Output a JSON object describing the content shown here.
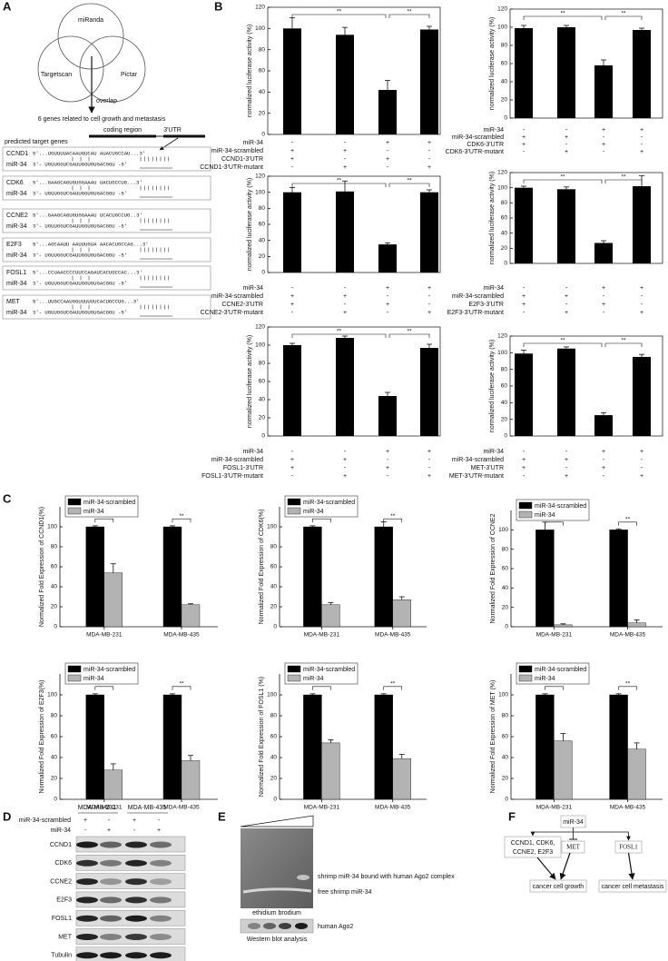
{
  "panel_labels": [
    "A",
    "B",
    "C",
    "D",
    "E",
    "F"
  ],
  "panel_a": {
    "databases": [
      "miRanda",
      "Targetscan",
      "Pictar"
    ],
    "overlap": "overlap",
    "summary": "6 genes related to cell growth and metastasis",
    "coding_region": "coding region",
    "utr": "3'UTR",
    "predicted": "predicted target genes",
    "targets": [
      {
        "gene": "CCND1",
        "mirna_label": "miR-34",
        "mrna": "5'...UGUUUUACAAUGUCAU AUACUGCCAU...3'",
        "mirna": "3'-   UGUUGGUCGAUUGGUGUGACGGU  -5'"
      },
      {
        "gene": "CDK6",
        "mirna_label": "miR-34",
        "mrna": "5'...GAAGCAGUGUGGAAAU UACUGCCUG...3'",
        "mirna": "3'-   UGUUGGUCGAUUGGUGUGACGGU  -5'"
      },
      {
        "gene": "CCNE2",
        "mirna_label": "miR-34",
        "mrna": "5'...GAAGCAGUGUGGAAAU UCACUGCCUG..3'",
        "mirna": "3'-   UGUUGGUCGAUUGGUGUGACGGU  -5'"
      },
      {
        "gene": "E2F3",
        "mirna_label": "miR-34",
        "mrna": "5'...AGCAAUU AAUUUGUA AACACUGCCAG...3'",
        "mirna": "3'-   UGUUGGUCGAUUGGUGUGACGGU  -5'"
      },
      {
        "gene": "FOSL1",
        "mirna_label": "miR-34",
        "mrna": "5'...CCUAACCCCUUCCAGAUCACUGCCAC...3'",
        "mirna": "3'-   UGUUGGUCGAUUGGUGUGACGGU  -5'"
      },
      {
        "gene": "MET",
        "mirna_label": "miR-34",
        "mrna": "5'...UUGCCAAUGGUUUUUUCACUGCCUG...3'",
        "mirna": "3'-   UGUUGGUCGAUUGGUGUGACGGU  -5'"
      }
    ]
  },
  "chart_data": [
    {
      "type": "bar",
      "ylabel": "normalized luciferase activity (%)",
      "values": [
        100,
        94,
        42,
        99
      ],
      "errors": [
        10,
        7,
        9,
        3
      ],
      "color": "#000000",
      "ylim": [
        0,
        120
      ],
      "yticks": [
        0,
        20,
        40,
        60,
        80,
        100,
        120
      ],
      "significance": [
        "**",
        "**"
      ],
      "conditions": [
        {
          "label": "miR-34",
          "signs": [
            "-",
            "-",
            "+",
            "+"
          ]
        },
        {
          "label": "miR-34-scrambled",
          "signs": [
            "+",
            "+",
            "-",
            "-"
          ]
        },
        {
          "label": "CCND1-3'UTR",
          "signs": [
            "+",
            "-",
            "+",
            "-"
          ]
        },
        {
          "label": "CCND1-3'UTR-mutant",
          "signs": [
            "-",
            "+",
            "-",
            "+"
          ]
        }
      ]
    },
    {
      "type": "bar",
      "ylabel": "normalized luciferase activity (%)",
      "values": [
        99,
        100,
        58,
        97
      ],
      "errors": [
        3,
        2,
        6,
        2
      ],
      "color": "#000000",
      "ylim": [
        0,
        120
      ],
      "yticks": [
        0,
        20,
        40,
        60,
        80,
        100,
        120
      ],
      "significance": [
        "**",
        "**"
      ],
      "conditions": [
        {
          "label": "miR-34",
          "signs": [
            "-",
            "-",
            "+",
            "+"
          ]
        },
        {
          "label": "miR-34-scrambled",
          "signs": [
            "+",
            "+",
            "-",
            "-"
          ]
        },
        {
          "label": "CDK6-3'UTR",
          "signs": [
            "+",
            "-",
            "+",
            "-"
          ]
        },
        {
          "label": "CDK6-3'UTR-mutant",
          "signs": [
            "-",
            "+",
            "-",
            "+"
          ]
        }
      ]
    },
    {
      "type": "bar",
      "ylabel": "normalized luciferase activity (%)",
      "values": [
        100,
        101,
        35,
        100
      ],
      "errors": [
        6,
        13,
        2,
        3
      ],
      "color": "#000000",
      "ylim": [
        0,
        120
      ],
      "yticks": [
        0,
        20,
        40,
        60,
        80,
        100,
        120
      ],
      "significance": [
        "**",
        "**"
      ],
      "conditions": [
        {
          "label": "miR-34",
          "signs": [
            "-",
            "-",
            "+",
            "+"
          ]
        },
        {
          "label": "miR-34-scrambled",
          "signs": [
            "+",
            "+",
            "-",
            "-"
          ]
        },
        {
          "label": "CCNE2-3'UTR",
          "signs": [
            "+",
            "-",
            "+",
            "-"
          ]
        },
        {
          "label": "CCNE2-3'UTR-mutant",
          "signs": [
            "-",
            "+",
            "-",
            "+"
          ]
        }
      ]
    },
    {
      "type": "bar",
      "ylabel": "normalized luciferase activity (%)",
      "values": [
        100,
        98,
        27,
        102
      ],
      "errors": [
        2,
        3,
        3,
        14
      ],
      "color": "#000000",
      "ylim": [
        0,
        120
      ],
      "yticks": [
        0,
        20,
        40,
        60,
        80,
        100,
        120
      ],
      "significance": [
        "**",
        "**"
      ],
      "conditions": [
        {
          "label": "miR-34",
          "signs": [
            "-",
            "-",
            "+",
            "+"
          ]
        },
        {
          "label": "miR-34-scrambled",
          "signs": [
            "+",
            "+",
            "-",
            "-"
          ]
        },
        {
          "label": "E2F3-3'UTR",
          "signs": [
            "+",
            "-",
            "+",
            "-"
          ]
        },
        {
          "label": "E2F3-3'UTR-mutant",
          "signs": [
            "-",
            "+",
            "-",
            "+"
          ]
        }
      ]
    },
    {
      "type": "bar",
      "ylabel": "normalized luciferase activity (%)",
      "values": [
        100,
        108,
        44,
        97
      ],
      "errors": [
        2,
        2,
        4,
        4
      ],
      "color": "#000000",
      "ylim": [
        0,
        120
      ],
      "yticks": [
        0,
        20,
        40,
        60,
        80,
        100,
        120
      ],
      "significance": [
        "**",
        "**"
      ],
      "conditions": [
        {
          "label": "miR-34",
          "signs": [
            "-",
            "-",
            "+",
            "+"
          ]
        },
        {
          "label": "miR-34-scrambled",
          "signs": [
            "+",
            "+",
            "-",
            "-"
          ]
        },
        {
          "label": "FOSL1-3'UTR",
          "signs": [
            "+",
            "-",
            "+",
            "-"
          ]
        },
        {
          "label": "FOSL1-3'UTR-mutant",
          "signs": [
            "-",
            "+",
            "-",
            "+"
          ]
        }
      ]
    },
    {
      "type": "bar",
      "ylabel": "normalized luciferase activity (%)",
      "values": [
        99,
        105,
        25,
        95
      ],
      "errors": [
        4,
        2,
        3,
        3
      ],
      "color": "#000000",
      "ylim": [
        0,
        120
      ],
      "yticks": [
        0,
        20,
        40,
        60,
        80,
        100,
        120
      ],
      "significance": [
        "**",
        "**"
      ],
      "conditions": [
        {
          "label": "miR-34",
          "signs": [
            "-",
            "-",
            "+",
            "+"
          ]
        },
        {
          "label": "miR-34-scrambled",
          "signs": [
            "+",
            "+",
            "-",
            "-"
          ]
        },
        {
          "label": "MET-3'UTR",
          "signs": [
            "+",
            "-",
            "+",
            "-"
          ]
        },
        {
          "label": "MET-3'UTR-mutant",
          "signs": [
            "-",
            "+",
            "-",
            "+"
          ]
        }
      ]
    },
    {
      "type": "grouped_bar",
      "ylabel": "Normalized Fold Expression of CCND1(%)",
      "categories": [
        "MDA-MB-231",
        "MDA-MB-435"
      ],
      "ylim": [
        0,
        120
      ],
      "yticks": [
        0,
        20,
        40,
        60,
        80,
        100
      ],
      "legend": "upper left",
      "significance": [
        "**",
        "**"
      ],
      "series": [
        {
          "name": "miR-34-scrambled",
          "color": "#000000",
          "values": [
            100,
            100
          ],
          "errors": [
            1,
            1
          ]
        },
        {
          "name": "miR-34",
          "color": "#b3b3b3",
          "values": [
            54,
            22
          ],
          "errors": [
            9,
            1
          ]
        }
      ]
    },
    {
      "type": "grouped_bar",
      "ylabel": "Normalized Fold Expression of CDK6(%)",
      "categories": [
        "MDA-MB-231",
        "MDA-MB-435"
      ],
      "ylim": [
        0,
        120
      ],
      "yticks": [
        0,
        20,
        40,
        60,
        80,
        100
      ],
      "legend": "upper left",
      "significance": [
        "**",
        "**"
      ],
      "series": [
        {
          "name": "miR-34-scrambled",
          "color": "#000000",
          "values": [
            100,
            100
          ],
          "errors": [
            1,
            5
          ]
        },
        {
          "name": "miR-34",
          "color": "#b3b3b3",
          "values": [
            22,
            27
          ],
          "errors": [
            2,
            3
          ]
        }
      ]
    },
    {
      "type": "grouped_bar",
      "ylabel": "Normalized Fold Expression of CCNE2",
      "categories": [
        "MDA-MB-231",
        "MDA-MB-435"
      ],
      "ylim": [
        0,
        120
      ],
      "yticks": [
        0,
        20,
        40,
        60,
        80,
        100
      ],
      "legend": "upper left",
      "significance": [
        "**",
        "**"
      ],
      "series": [
        {
          "name": "miR-34-scrambled",
          "color": "#000000",
          "values": [
            100,
            100
          ],
          "errors": [
            8,
            1
          ]
        },
        {
          "name": "miR-34",
          "color": "#b3b3b3",
          "values": [
            2,
            4
          ],
          "errors": [
            1,
            3
          ]
        }
      ]
    },
    {
      "type": "grouped_bar",
      "ylabel": "Normalized Fold Expression of E2F3(%)",
      "categories": [
        "MDA-MB-231",
        "MDA-MB-435"
      ],
      "ylim": [
        0,
        120
      ],
      "yticks": [
        0,
        20,
        40,
        60,
        80,
        100
      ],
      "legend": "upper left",
      "significance": [
        "**",
        "**"
      ],
      "series": [
        {
          "name": "miR-34-scrambled",
          "color": "#000000",
          "values": [
            100,
            100
          ],
          "errors": [
            1,
            1
          ]
        },
        {
          "name": "miR-34",
          "color": "#b3b3b3",
          "values": [
            28,
            37
          ],
          "errors": [
            6,
            5
          ]
        }
      ]
    },
    {
      "type": "grouped_bar",
      "ylabel": "Normalized Fold Expression of FOSL1 (%)",
      "categories": [
        "MDA-MB-231",
        "MDA-MB-435"
      ],
      "ylim": [
        0,
        120
      ],
      "yticks": [
        0,
        20,
        40,
        60,
        80,
        100
      ],
      "legend": "upper left",
      "significance": [
        "**",
        "**"
      ],
      "series": [
        {
          "name": "miR-34-scrambled",
          "color": "#000000",
          "values": [
            100,
            100
          ],
          "errors": [
            1,
            1
          ]
        },
        {
          "name": "miR-34",
          "color": "#b3b3b3",
          "values": [
            54,
            39
          ],
          "errors": [
            3,
            4
          ]
        }
      ]
    },
    {
      "type": "grouped_bar",
      "ylabel": "Normalized Fold Expression of MET (%)",
      "categories": [
        "MDA-MB-231",
        "MDA-MB-435"
      ],
      "ylim": [
        0,
        120
      ],
      "yticks": [
        0,
        20,
        40,
        60,
        80,
        100
      ],
      "legend": "upper left",
      "significance": [
        "**",
        "**"
      ],
      "series": [
        {
          "name": "miR-34-scrambled",
          "color": "#000000",
          "values": [
            100,
            100
          ],
          "errors": [
            1,
            1
          ]
        },
        {
          "name": "miR-34",
          "color": "#b3b3b3",
          "values": [
            56,
            48
          ],
          "errors": [
            7,
            6
          ]
        }
      ]
    }
  ],
  "panel_d": {
    "cell_lines": [
      "MDA-MB-231",
      "MDA-MB-435"
    ],
    "treatments": [
      {
        "label": "miR-34-scrambled",
        "signs": [
          "+",
          "-",
          "+",
          "-"
        ]
      },
      {
        "label": "miR-34",
        "signs": [
          "-",
          "+",
          "-",
          "+"
        ]
      }
    ],
    "proteins": [
      "CCND1",
      "CDK6",
      "CCNE2",
      "E2F3",
      "FOSL1",
      "MET",
      "Tubulin"
    ]
  },
  "panel_e": {
    "band_upper": "shrimp miR-34 bound with human Ago2 complex",
    "band_lower": "free shrimp miR-34",
    "gel_stain": "ethidium brodium",
    "blot_label": "human Ago2",
    "blot_method": "Western blot analysis"
  },
  "panel_f": {
    "mir": "miR-34",
    "growth_genes": [
      "CCND1, CDK6,",
      "CCNE2, E2F3"
    ],
    "met": "MET",
    "fosl1": "FOSL1",
    "growth": "cancer cell growth",
    "metastasis": "cancer cell metastasis"
  }
}
